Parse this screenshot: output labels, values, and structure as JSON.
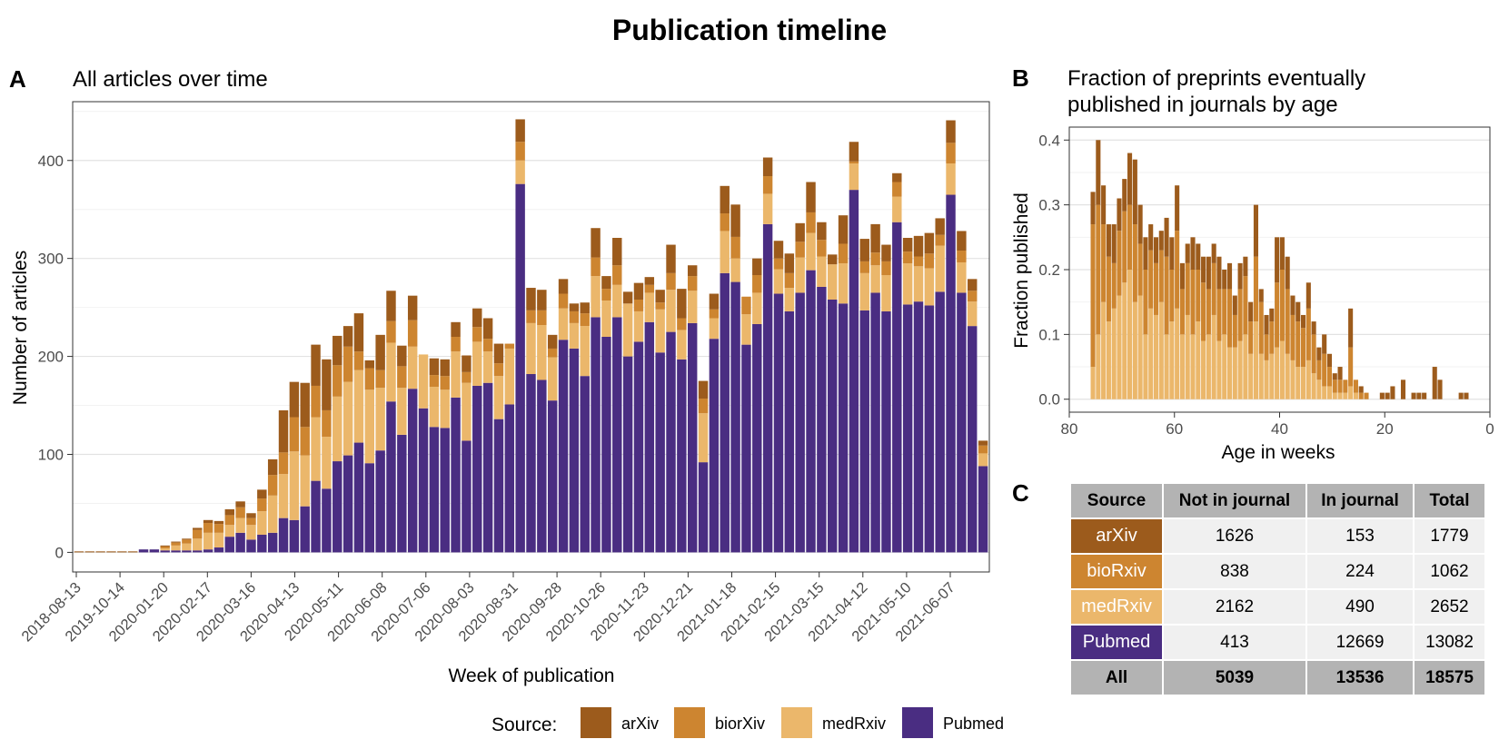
{
  "figure_title": "Publication timeline",
  "colors": {
    "arXiv": "#9c5b1c",
    "biorXiv": "#cd8530",
    "medRxiv": "#ebb76b",
    "Pubmed": "#4a2d82"
  },
  "legend": {
    "title": "Source:",
    "items": [
      "arXiv",
      "biorXiv",
      "medRxiv",
      "Pubmed"
    ]
  },
  "chart_data": [
    {
      "panel": "A",
      "type": "bar",
      "stacked": true,
      "title": "All articles over time",
      "xlabel": "Week of publication",
      "ylabel": "Number of articles",
      "ylim": [
        0,
        460
      ],
      "yticks": [
        0,
        100,
        200,
        300,
        400
      ],
      "xticks": [
        "2018-08-13",
        "2019-10-14",
        "2020-01-20",
        "2020-02-17",
        "2020-03-16",
        "2020-04-13",
        "2020-05-11",
        "2020-06-08",
        "2020-07-06",
        "2020-08-03",
        "2020-08-31",
        "2020-09-28",
        "2020-10-26",
        "2020-11-23",
        "2020-12-21",
        "2021-01-18",
        "2021-02-15",
        "2021-03-15",
        "2021-04-12",
        "2021-05-10",
        "2021-06-07"
      ],
      "series_order": [
        "Pubmed",
        "medRxiv",
        "biorXiv",
        "arXiv"
      ],
      "bars": [
        [
          0,
          0,
          0,
          1
        ],
        [
          0,
          0,
          0,
          1
        ],
        [
          0,
          0,
          0,
          1
        ],
        [
          0,
          0,
          0,
          1
        ],
        [
          0,
          0,
          0,
          1
        ],
        [
          0,
          0,
          0,
          1
        ],
        [
          3,
          0,
          0,
          0
        ],
        [
          3,
          0,
          0,
          0
        ],
        [
          2,
          2,
          2,
          1
        ],
        [
          2,
          5,
          3,
          1
        ],
        [
          2,
          7,
          4,
          1
        ],
        [
          2,
          12,
          9,
          2
        ],
        [
          3,
          17,
          10,
          3
        ],
        [
          5,
          15,
          9,
          3
        ],
        [
          16,
          12,
          10,
          6
        ],
        [
          20,
          15,
          11,
          6
        ],
        [
          13,
          15,
          7,
          5
        ],
        [
          18,
          24,
          13,
          9
        ],
        [
          20,
          38,
          21,
          16
        ],
        [
          35,
          45,
          22,
          43
        ],
        [
          33,
          70,
          35,
          36
        ],
        [
          47,
          52,
          29,
          45
        ],
        [
          73,
          65,
          32,
          42
        ],
        [
          65,
          53,
          27,
          52
        ],
        [
          93,
          66,
          32,
          30
        ],
        [
          99,
          75,
          36,
          21
        ],
        [
          112,
          74,
          19,
          39
        ],
        [
          91,
          75,
          22,
          8
        ],
        [
          104,
          64,
          18,
          36
        ],
        [
          154,
          60,
          22,
          31
        ],
        [
          120,
          48,
          22,
          21
        ],
        [
          167,
          43,
          27,
          25
        ],
        [
          147,
          55,
          0,
          0
        ],
        [
          128,
          41,
          12,
          17
        ],
        [
          127,
          39,
          14,
          17
        ],
        [
          158,
          47,
          15,
          15
        ],
        [
          114,
          59,
          11,
          17
        ],
        [
          170,
          45,
          15,
          19
        ],
        [
          173,
          32,
          13,
          21
        ],
        [
          136,
          44,
          13,
          20
        ],
        [
          151,
          57,
          5,
          0
        ],
        [
          376,
          24,
          19,
          23
        ],
        [
          182,
          52,
          13,
          23
        ],
        [
          176,
          56,
          15,
          21
        ],
        [
          155,
          44,
          9,
          14
        ],
        [
          217,
          32,
          15,
          15
        ],
        [
          208,
          26,
          12,
          8
        ],
        [
          180,
          51,
          13,
          11
        ],
        [
          240,
          42,
          19,
          30
        ],
        [
          220,
          37,
          12,
          13
        ],
        [
          240,
          33,
          20,
          28
        ],
        [
          200,
          54,
          0,
          12
        ],
        [
          215,
          31,
          12,
          17
        ],
        [
          235,
          30,
          8,
          8
        ],
        [
          204,
          44,
          7,
          13
        ],
        [
          225,
          43,
          17,
          29
        ],
        [
          197,
          30,
          12,
          30
        ],
        [
          234,
          33,
          15,
          11
        ],
        [
          92,
          50,
          15,
          18
        ],
        [
          218,
          21,
          9,
          16
        ],
        [
          285,
          43,
          18,
          28
        ],
        [
          276,
          24,
          22,
          33
        ],
        [
          212,
          31,
          18,
          0
        ],
        [
          233,
          32,
          18,
          17
        ],
        [
          335,
          31,
          18,
          19
        ],
        [
          264,
          25,
          11,
          18
        ],
        [
          246,
          24,
          15,
          20
        ],
        [
          265,
          36,
          16,
          19
        ],
        [
          288,
          38,
          21,
          31
        ],
        [
          271,
          31,
          17,
          18
        ],
        [
          258,
          36,
          0,
          10
        ],
        [
          254,
          41,
          20,
          29
        ],
        [
          370,
          27,
          2,
          20
        ],
        [
          247,
          38,
          12,
          23
        ],
        [
          265,
          28,
          13,
          29
        ],
        [
          246,
          37,
          14,
          17
        ],
        [
          337,
          26,
          15,
          9
        ],
        [
          253,
          42,
          12,
          14
        ],
        [
          256,
          36,
          10,
          21
        ],
        [
          252,
          38,
          15,
          21
        ],
        [
          266,
          47,
          11,
          17
        ],
        [
          365,
          32,
          21,
          23
        ],
        [
          265,
          31,
          12,
          20
        ],
        [
          231,
          25,
          11,
          12
        ],
        [
          88,
          13,
          8,
          5
        ]
      ]
    },
    {
      "panel": "B",
      "type": "bar",
      "stacked": true,
      "title_line1": "Fraction of preprints eventually",
      "title_line2": "published in journals by age",
      "xlabel": "Age in weeks",
      "ylabel": "Fraction published",
      "xlim": [
        80,
        0
      ],
      "ylim": [
        -0.02,
        0.42
      ],
      "xticks": [
        80,
        60,
        40,
        20,
        0
      ],
      "yticks": [
        0.0,
        0.1,
        0.2,
        0.3,
        0.4
      ],
      "ytick_labels": [
        "0.0",
        "0.1",
        "0.2",
        "0.3",
        "0.4"
      ],
      "series_order": [
        "medRxiv",
        "biorXiv",
        "arXiv"
      ],
      "bars": [
        {
          "age": 75.5,
          "v": [
            0.05,
            0.22,
            0.05
          ]
        },
        {
          "age": 74.5,
          "v": [
            0.1,
            0.2,
            0.1
          ]
        },
        {
          "age": 73.5,
          "v": [
            0.15,
            0.12,
            0.06
          ]
        },
        {
          "age": 72.5,
          "v": [
            0.12,
            0.1,
            0.05
          ]
        },
        {
          "age": 71.5,
          "v": [
            0.14,
            0.07,
            0.06
          ]
        },
        {
          "age": 70.5,
          "v": [
            0.16,
            0.1,
            0.05
          ]
        },
        {
          "age": 69.5,
          "v": [
            0.18,
            0.11,
            0.05
          ]
        },
        {
          "age": 68.5,
          "v": [
            0.2,
            0.1,
            0.08
          ]
        },
        {
          "age": 67.5,
          "v": [
            0.15,
            0.12,
            0.1
          ]
        },
        {
          "age": 66.5,
          "v": [
            0.16,
            0.08,
            0.06
          ]
        },
        {
          "age": 65.5,
          "v": [
            0.1,
            0.1,
            0.05
          ]
        },
        {
          "age": 64.5,
          "v": [
            0.14,
            0.09,
            0.04
          ]
        },
        {
          "age": 63.5,
          "v": [
            0.13,
            0.08,
            0.04
          ]
        },
        {
          "age": 62.5,
          "v": [
            0.15,
            0.08,
            0.03
          ]
        },
        {
          "age": 61.5,
          "v": [
            0.1,
            0.12,
            0.06
          ]
        },
        {
          "age": 60.5,
          "v": [
            0.12,
            0.08,
            0.05
          ]
        },
        {
          "age": 59.5,
          "v": [
            0.14,
            0.12,
            0.07
          ]
        },
        {
          "age": 58.5,
          "v": [
            0.1,
            0.07,
            0.04
          ]
        },
        {
          "age": 57.5,
          "v": [
            0.13,
            0.08,
            0.03
          ]
        },
        {
          "age": 56.5,
          "v": [
            0.1,
            0.1,
            0.05
          ]
        },
        {
          "age": 55.5,
          "v": [
            0.12,
            0.08,
            0.04
          ]
        },
        {
          "age": 54.5,
          "v": [
            0.09,
            0.09,
            0.04
          ]
        },
        {
          "age": 53.5,
          "v": [
            0.1,
            0.07,
            0.05
          ]
        },
        {
          "age": 52.5,
          "v": [
            0.13,
            0.08,
            0.03
          ]
        },
        {
          "age": 51.5,
          "v": [
            0.09,
            0.08,
            0.05
          ]
        },
        {
          "age": 50.5,
          "v": [
            0.1,
            0.07,
            0.03
          ]
        },
        {
          "age": 49.5,
          "v": [
            0.08,
            0.09,
            0.04
          ]
        },
        {
          "age": 48.5,
          "v": [
            0.08,
            0.05,
            0.03
          ]
        },
        {
          "age": 47.5,
          "v": [
            0.09,
            0.08,
            0.04
          ]
        },
        {
          "age": 46.5,
          "v": [
            0.1,
            0.09,
            0.03
          ]
        },
        {
          "age": 45.5,
          "v": [
            0.07,
            0.05,
            0.03
          ]
        },
        {
          "age": 44.5,
          "v": [
            0.12,
            0.1,
            0.08
          ]
        },
        {
          "age": 43.5,
          "v": [
            0.07,
            0.08,
            0.02
          ]
        },
        {
          "age": 42.5,
          "v": [
            0.06,
            0.04,
            0.03
          ]
        },
        {
          "age": 41.5,
          "v": [
            0.07,
            0.05,
            0.02
          ]
        },
        {
          "age": 40.5,
          "v": [
            0.08,
            0.1,
            0.07
          ]
        },
        {
          "age": 39.5,
          "v": [
            0.09,
            0.11,
            0.05
          ]
        },
        {
          "age": 38.5,
          "v": [
            0.07,
            0.1,
            0.05
          ]
        },
        {
          "age": 37.5,
          "v": [
            0.06,
            0.07,
            0.03
          ]
        },
        {
          "age": 36.5,
          "v": [
            0.05,
            0.07,
            0.03
          ]
        },
        {
          "age": 35.5,
          "v": [
            0.05,
            0.06,
            0.02
          ]
        },
        {
          "age": 34.5,
          "v": [
            0.06,
            0.08,
            0.04
          ]
        },
        {
          "age": 33.5,
          "v": [
            0.04,
            0.06,
            0.02
          ]
        },
        {
          "age": 32.5,
          "v": [
            0.03,
            0.03,
            0.02
          ]
        },
        {
          "age": 31.5,
          "v": [
            0.02,
            0.05,
            0.03
          ]
        },
        {
          "age": 30.5,
          "v": [
            0.02,
            0.03,
            0.02
          ]
        },
        {
          "age": 29.5,
          "v": [
            0.01,
            0.02,
            0.01
          ]
        },
        {
          "age": 28.5,
          "v": [
            0.01,
            0.02,
            0.02
          ]
        },
        {
          "age": 27.5,
          "v": [
            0.01,
            0.02,
            0.0
          ]
        },
        {
          "age": 26.5,
          "v": [
            0.02,
            0.06,
            0.06
          ]
        },
        {
          "age": 25.5,
          "v": [
            0.01,
            0.02,
            0.0
          ]
        },
        {
          "age": 24.5,
          "v": [
            0.0,
            0.01,
            0.01
          ]
        },
        {
          "age": 23.5,
          "v": [
            0.0,
            0.01,
            0.0
          ]
        },
        {
          "age": 20.5,
          "v": [
            0.0,
            0.0,
            0.01
          ]
        },
        {
          "age": 19.5,
          "v": [
            0.0,
            0.0,
            0.01
          ]
        },
        {
          "age": 18.5,
          "v": [
            0.0,
            0.0,
            0.02
          ]
        },
        {
          "age": 16.5,
          "v": [
            0.0,
            0.0,
            0.03
          ]
        },
        {
          "age": 14.5,
          "v": [
            0.0,
            0.0,
            0.01
          ]
        },
        {
          "age": 13.5,
          "v": [
            0.0,
            0.0,
            0.01
          ]
        },
        {
          "age": 12.5,
          "v": [
            0.0,
            0.0,
            0.01
          ]
        },
        {
          "age": 10.5,
          "v": [
            0.0,
            0.0,
            0.05
          ]
        },
        {
          "age": 9.5,
          "v": [
            0.0,
            0.0,
            0.03
          ]
        },
        {
          "age": 5.5,
          "v": [
            0.0,
            0.0,
            0.01
          ]
        },
        {
          "age": 4.5,
          "v": [
            0.0,
            0.0,
            0.01
          ]
        }
      ]
    },
    {
      "panel": "C",
      "type": "table",
      "columns": [
        "Source",
        "Not in journal",
        "In journal",
        "Total"
      ],
      "rows": [
        {
          "source": "arXiv",
          "not_in_journal": "1626",
          "in_journal": "153",
          "total": "1779",
          "color": "#9c5b1c"
        },
        {
          "source": "bioRxiv",
          "not_in_journal": "838",
          "in_journal": "224",
          "total": "1062",
          "color": "#cd8530"
        },
        {
          "source": "medRxiv",
          "not_in_journal": "2162",
          "in_journal": "490",
          "total": "2652",
          "color": "#ebb76b"
        },
        {
          "source": "Pubmed",
          "not_in_journal": "413",
          "in_journal": "12669",
          "total": "13082",
          "color": "#4a2d82"
        }
      ],
      "total_row": {
        "source": "All",
        "not_in_journal": "5039",
        "in_journal": "13536",
        "total": "18575"
      }
    }
  ]
}
